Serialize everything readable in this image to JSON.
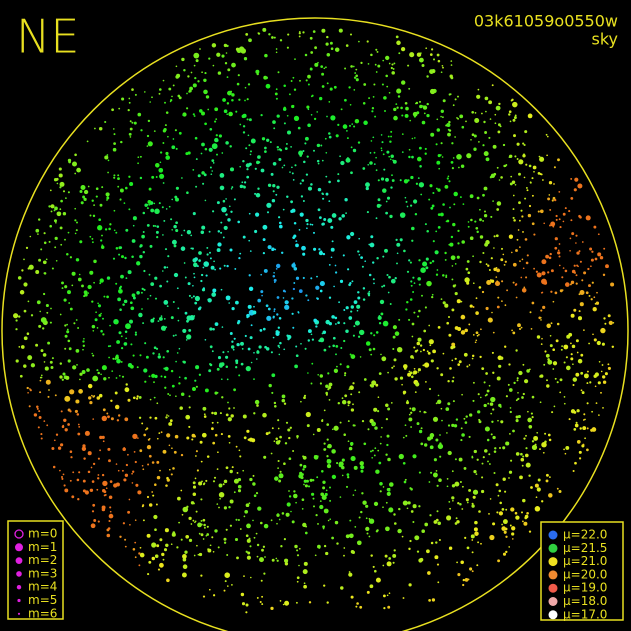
{
  "header": {
    "direction": "NE",
    "image_id": "03k61059o0550w",
    "mode": "sky"
  },
  "magnitude_legend": {
    "color": "#e020e0",
    "items": [
      "m=0",
      "m=1",
      "m=2",
      "m=3",
      "m=4",
      "m=5",
      "m=6"
    ]
  },
  "brightness_legend": {
    "items": [
      {
        "label": "μ=22.0",
        "color": "#2a6cf0"
      },
      {
        "label": "μ=21.5",
        "color": "#30d040"
      },
      {
        "label": "μ=21.0",
        "color": "#f0e020"
      },
      {
        "label": "μ=20.0",
        "color": "#f08a30"
      },
      {
        "label": "μ=19.0",
        "color": "#f05a4a"
      },
      {
        "label": "μ=18.0",
        "color": "#f0a8a8"
      },
      {
        "label": "μ=17.0",
        "color": "#ffffff"
      }
    ]
  }
}
